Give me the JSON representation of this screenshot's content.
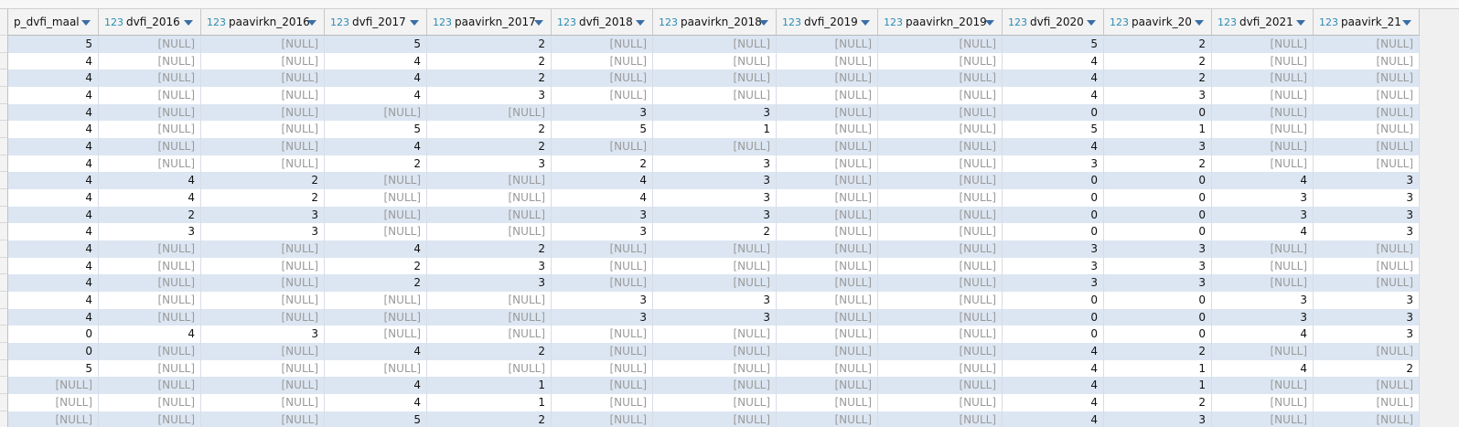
{
  "table": {
    "columns": [
      {
        "name": "p_dvfi_maal"
      },
      {
        "type": "123",
        "name": "dvfi_2016"
      },
      {
        "type": "123",
        "name": "paavirkn_2016"
      },
      {
        "type": "123",
        "name": "dvfi_2017"
      },
      {
        "type": "123",
        "name": "paavirkn_2017"
      },
      {
        "type": "123",
        "name": "dvfi_2018"
      },
      {
        "type": "123",
        "name": "paavirkn_2018"
      },
      {
        "type": "123",
        "name": "dvfi_2019"
      },
      {
        "type": "123",
        "name": "paavirkn_2019"
      },
      {
        "type": "123",
        "name": "dvfi_2020"
      },
      {
        "type": "123",
        "name": "paavirk_20"
      },
      {
        "type": "123",
        "name": "dvfi_2021"
      },
      {
        "type": "123",
        "name": "paavirk_21"
      }
    ],
    "rows": [
      [
        5,
        "[NULL]",
        "[NULL]",
        5,
        2,
        "[NULL]",
        "[NULL]",
        "[NULL]",
        "[NULL]",
        5,
        2,
        "[NULL]",
        "[NULL]"
      ],
      [
        4,
        "[NULL]",
        "[NULL]",
        4,
        2,
        "[NULL]",
        "[NULL]",
        "[NULL]",
        "[NULL]",
        4,
        2,
        "[NULL]",
        "[NULL]"
      ],
      [
        4,
        "[NULL]",
        "[NULL]",
        4,
        2,
        "[NULL]",
        "[NULL]",
        "[NULL]",
        "[NULL]",
        4,
        2,
        "[NULL]",
        "[NULL]"
      ],
      [
        4,
        "[NULL]",
        "[NULL]",
        4,
        3,
        "[NULL]",
        "[NULL]",
        "[NULL]",
        "[NULL]",
        4,
        3,
        "[NULL]",
        "[NULL]"
      ],
      [
        4,
        "[NULL]",
        "[NULL]",
        "[NULL]",
        "[NULL]",
        3,
        3,
        "[NULL]",
        "[NULL]",
        0,
        0,
        "[NULL]",
        "[NULL]"
      ],
      [
        4,
        "[NULL]",
        "[NULL]",
        5,
        2,
        5,
        1,
        "[NULL]",
        "[NULL]",
        5,
        1,
        "[NULL]",
        "[NULL]"
      ],
      [
        4,
        "[NULL]",
        "[NULL]",
        4,
        2,
        "[NULL]",
        "[NULL]",
        "[NULL]",
        "[NULL]",
        4,
        3,
        "[NULL]",
        "[NULL]"
      ],
      [
        4,
        "[NULL]",
        "[NULL]",
        2,
        3,
        2,
        3,
        "[NULL]",
        "[NULL]",
        3,
        2,
        "[NULL]",
        "[NULL]"
      ],
      [
        4,
        4,
        2,
        "[NULL]",
        "[NULL]",
        4,
        3,
        "[NULL]",
        "[NULL]",
        0,
        0,
        4,
        3
      ],
      [
        4,
        4,
        2,
        "[NULL]",
        "[NULL]",
        4,
        3,
        "[NULL]",
        "[NULL]",
        0,
        0,
        3,
        3
      ],
      [
        4,
        2,
        3,
        "[NULL]",
        "[NULL]",
        3,
        3,
        "[NULL]",
        "[NULL]",
        0,
        0,
        3,
        3
      ],
      [
        4,
        3,
        3,
        "[NULL]",
        "[NULL]",
        3,
        2,
        "[NULL]",
        "[NULL]",
        0,
        0,
        4,
        3
      ],
      [
        4,
        "[NULL]",
        "[NULL]",
        4,
        2,
        "[NULL]",
        "[NULL]",
        "[NULL]",
        "[NULL]",
        3,
        3,
        "[NULL]",
        "[NULL]"
      ],
      [
        4,
        "[NULL]",
        "[NULL]",
        2,
        3,
        "[NULL]",
        "[NULL]",
        "[NULL]",
        "[NULL]",
        3,
        3,
        "[NULL]",
        "[NULL]"
      ],
      [
        4,
        "[NULL]",
        "[NULL]",
        2,
        3,
        "[NULL]",
        "[NULL]",
        "[NULL]",
        "[NULL]",
        3,
        3,
        "[NULL]",
        "[NULL]"
      ],
      [
        4,
        "[NULL]",
        "[NULL]",
        "[NULL]",
        "[NULL]",
        3,
        3,
        "[NULL]",
        "[NULL]",
        0,
        0,
        3,
        3
      ],
      [
        4,
        "[NULL]",
        "[NULL]",
        "[NULL]",
        "[NULL]",
        3,
        3,
        "[NULL]",
        "[NULL]",
        0,
        0,
        3,
        3
      ],
      [
        0,
        4,
        3,
        "[NULL]",
        "[NULL]",
        "[NULL]",
        "[NULL]",
        "[NULL]",
        "[NULL]",
        0,
        0,
        4,
        3
      ],
      [
        0,
        "[NULL]",
        "[NULL]",
        4,
        2,
        "[NULL]",
        "[NULL]",
        "[NULL]",
        "[NULL]",
        4,
        2,
        "[NULL]",
        "[NULL]"
      ],
      [
        5,
        "[NULL]",
        "[NULL]",
        "[NULL]",
        "[NULL]",
        "[NULL]",
        "[NULL]",
        "[NULL]",
        "[NULL]",
        4,
        1,
        4,
        2
      ],
      [
        "[NULL]",
        "[NULL]",
        "[NULL]",
        4,
        1,
        "[NULL]",
        "[NULL]",
        "[NULL]",
        "[NULL]",
        4,
        1,
        "[NULL]",
        "[NULL]"
      ],
      [
        "[NULL]",
        "[NULL]",
        "[NULL]",
        4,
        1,
        "[NULL]",
        "[NULL]",
        "[NULL]",
        "[NULL]",
        4,
        2,
        "[NULL]",
        "[NULL]"
      ],
      [
        "[NULL]",
        "[NULL]",
        "[NULL]",
        5,
        2,
        "[NULL]",
        "[NULL]",
        "[NULL]",
        "[NULL]",
        4,
        3,
        "[NULL]",
        "[NULL]"
      ]
    ]
  }
}
